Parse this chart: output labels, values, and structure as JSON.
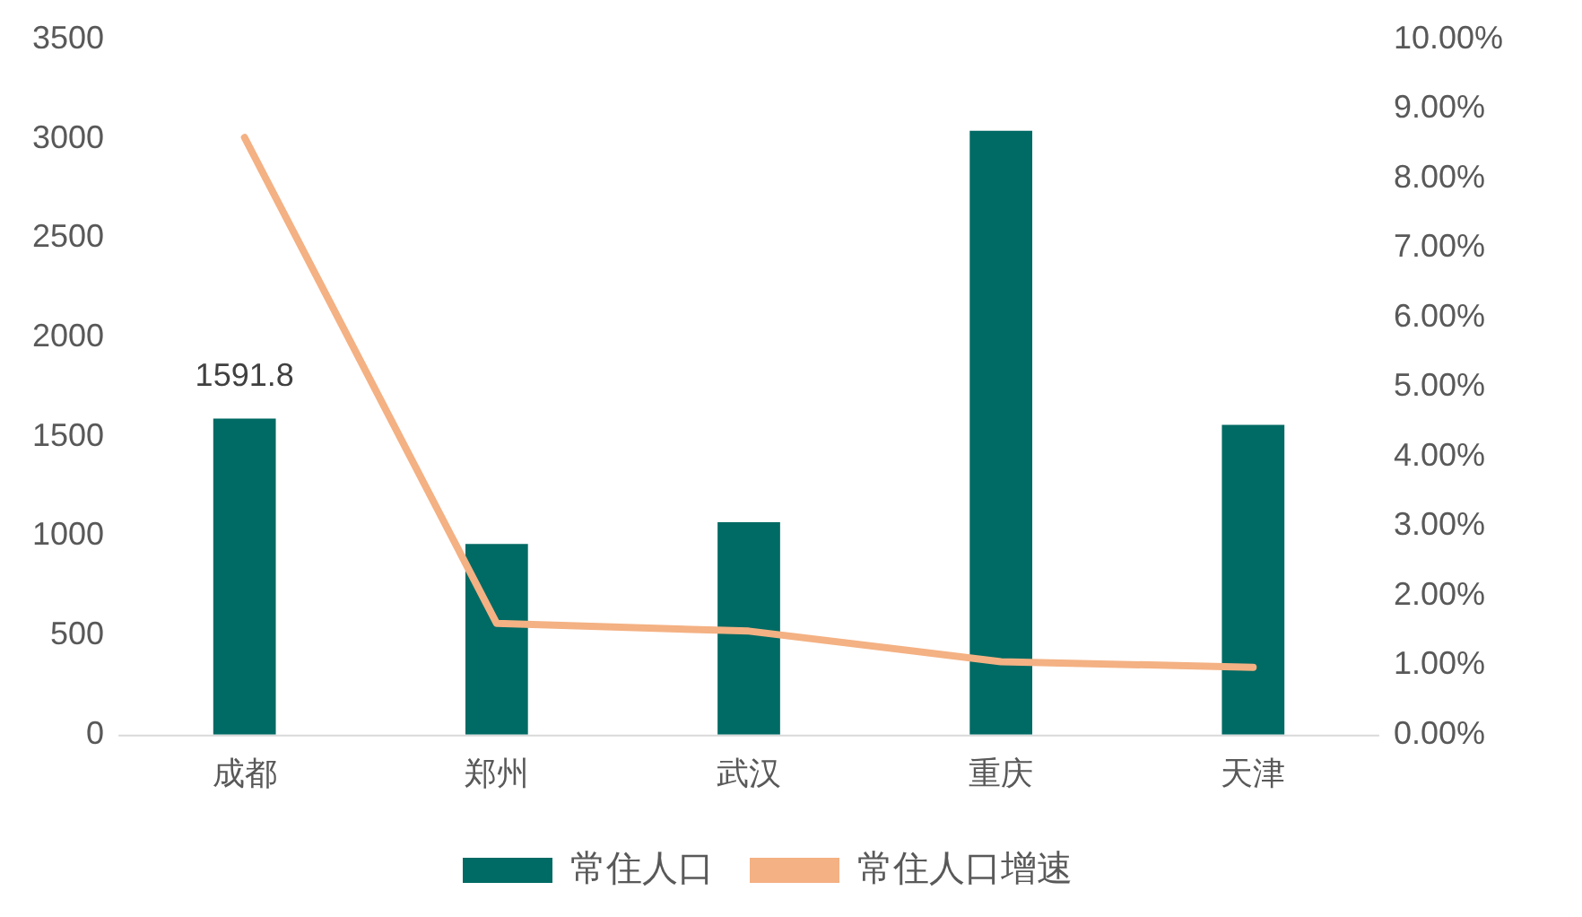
{
  "chart_data": {
    "type": "bar",
    "categories": [
      "成都",
      "郑州",
      "武汉",
      "重庆",
      "天津"
    ],
    "series": [
      {
        "name": "常住人口",
        "color": "#006a64",
        "values": [
          1591.8,
          960,
          1070,
          3040,
          1560
        ],
        "value_labels": [
          "1591.8",
          null,
          null,
          null,
          null
        ]
      },
      {
        "name": "常住人口增速",
        "type": "line",
        "axis": "y2",
        "color": "#f4b183",
        "values": [
          8.59,
          1.6,
          1.49,
          1.05,
          0.97
        ]
      }
    ],
    "ylim": [
      0,
      3500
    ],
    "yticks": [
      0,
      500,
      1000,
      1500,
      2000,
      2500,
      3000,
      3500
    ],
    "y2lim": [
      0,
      10
    ],
    "y2ticks": [
      {
        "value": 0,
        "label": "0.00%"
      },
      {
        "value": 1,
        "label": "1.00%"
      },
      {
        "value": 2,
        "label": "2.00%"
      },
      {
        "value": 3,
        "label": "3.00%"
      },
      {
        "value": 4,
        "label": "4.00%"
      },
      {
        "value": 5,
        "label": "5.00%"
      },
      {
        "value": 6,
        "label": "6.00%"
      },
      {
        "value": 7,
        "label": "7.00%"
      },
      {
        "value": 8,
        "label": "8.00%"
      },
      {
        "value": 9,
        "label": "9.00%"
      },
      {
        "value": 10,
        "label": "10.00%"
      }
    ],
    "grid": false,
    "legend": "bottom",
    "marker": "none"
  }
}
